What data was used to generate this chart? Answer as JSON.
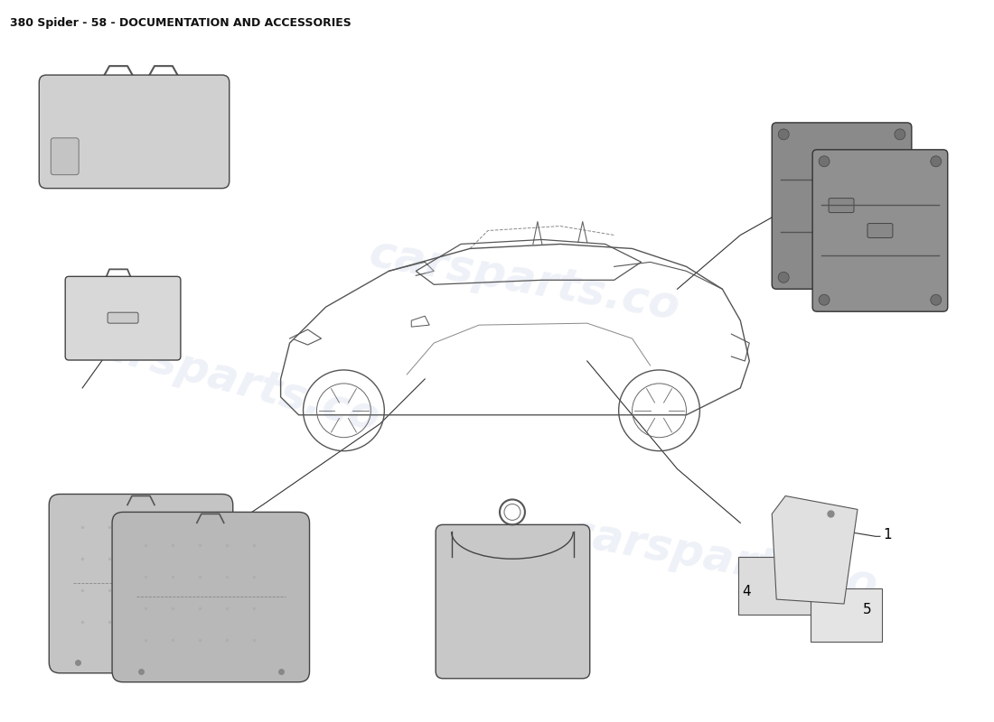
{
  "title": "380 Spider - 58 - DOCUMENTATION AND ACCESSORIES",
  "title_fontsize": 9,
  "title_bold": true,
  "bg_color": "#ffffff",
  "watermark_text": "carsparts.co",
  "watermark_color": "#d0d8e8",
  "watermark_fontsize": 36,
  "watermark_alpha": 0.35,
  "line_color": "#333333",
  "label_fontsize": 11,
  "part_fill": "#c8c8c8",
  "part_fill_dark": "#aaaaaa",
  "part_fill_light": "#e8e8e8"
}
